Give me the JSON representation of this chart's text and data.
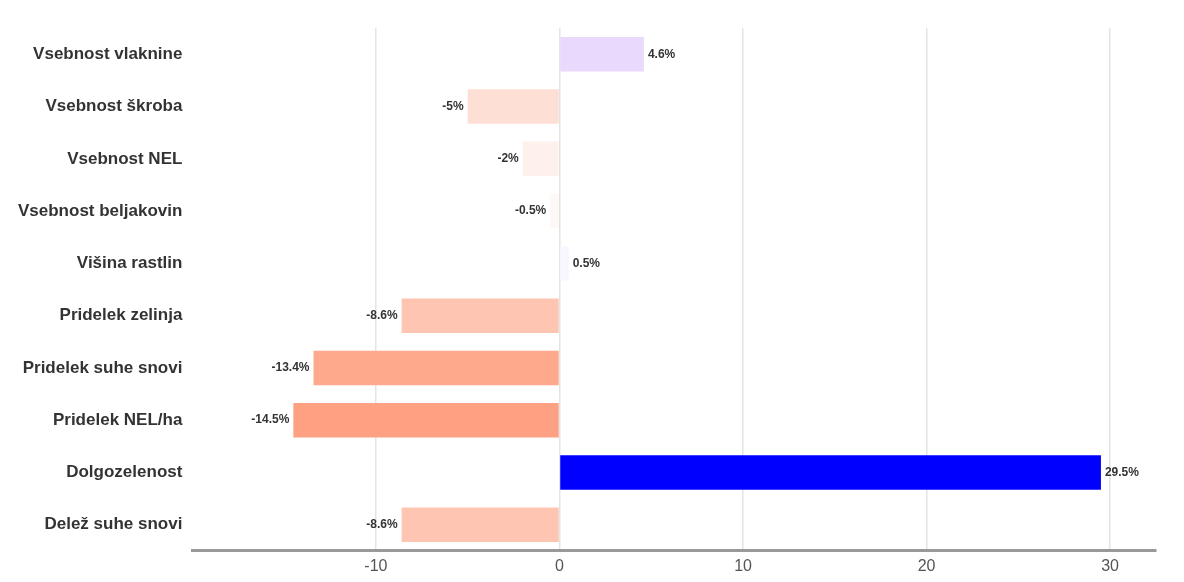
{
  "chart_data": {
    "type": "bar",
    "orientation": "horizontal",
    "categories": [
      "Vsebnost vlaknine",
      "Vsebnost škroba",
      "Vsebnost NEL",
      "Vsebnost beljakovin",
      "Višina rastlin",
      "Pridelek zelinja",
      "Pridelek suhe snovi",
      "Pridelek NEL/ha",
      "Dolgozelenost",
      "Delež suhe snovi"
    ],
    "values": [
      4.6,
      -5,
      -2,
      -0.5,
      0.5,
      -8.6,
      -13.4,
      -14.5,
      29.5,
      -8.6
    ],
    "colors": [
      "#e8d9fd",
      "#fddfd5",
      "#fef0eb",
      "#fef8f6",
      "#f8f6fe",
      "#fec5b2",
      "#fea98c",
      "#fea082",
      "#0000ff",
      "#fec5b2"
    ],
    "value_labels": [
      "4.6%",
      "-5%",
      "-2%",
      "-0.5%",
      "0.5%",
      "-8.6%",
      "-13.4%",
      "-14.5%",
      "29.5%",
      "-8.6%"
    ],
    "xlim": [
      -20,
      32.5
    ],
    "xticks": [
      -10,
      0,
      10,
      20,
      30
    ],
    "grid": "x",
    "legend": false
  }
}
